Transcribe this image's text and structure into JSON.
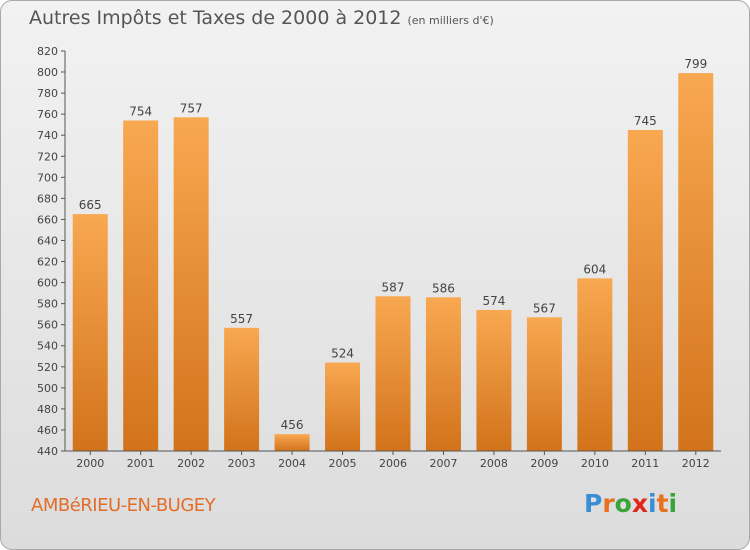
{
  "header": {
    "title": "Autres Impôts et Taxes de 2000 à 2012",
    "unit": "(en milliers d'€)"
  },
  "footer": {
    "commune": "AMBéRIEU-EN-BUGEY",
    "logo_letters": [
      "P",
      "r",
      "o",
      "x",
      "i",
      "t",
      "i"
    ],
    "logo_colors": [
      "#3a8fd4",
      "#e8711f",
      "#3aa43a",
      "#e2261a",
      "#3a8fd4",
      "#e8711f",
      "#3aa43a"
    ]
  },
  "colors": {
    "bar_light": "#f8a851",
    "bar_dark": "#d2731b",
    "axis": "#555555",
    "grid": "#cfcfcf"
  },
  "chart_data": {
    "type": "bar",
    "categories": [
      "2000",
      "2001",
      "2002",
      "2003",
      "2004",
      "2005",
      "2006",
      "2007",
      "2008",
      "2009",
      "2010",
      "2011",
      "2012"
    ],
    "values": [
      665,
      754,
      757,
      557,
      456,
      524,
      587,
      586,
      574,
      567,
      604,
      745,
      799
    ],
    "data_labels": [
      "665",
      "754",
      "757",
      "557",
      "456",
      "524",
      "587",
      "586",
      "574",
      "567",
      "604",
      "745",
      "799"
    ],
    "yticks": [
      "440",
      "460",
      "480",
      "500",
      "520",
      "540",
      "560",
      "580",
      "600",
      "620",
      "640",
      "660",
      "680",
      "700",
      "720",
      "740",
      "760",
      "780",
      "800",
      "820"
    ],
    "ylim": [
      440,
      820
    ],
    "title": "Autres Impôts et Taxes de 2000 à 2012",
    "xlabel": "",
    "ylabel": "",
    "grid": false,
    "legend": "none"
  }
}
